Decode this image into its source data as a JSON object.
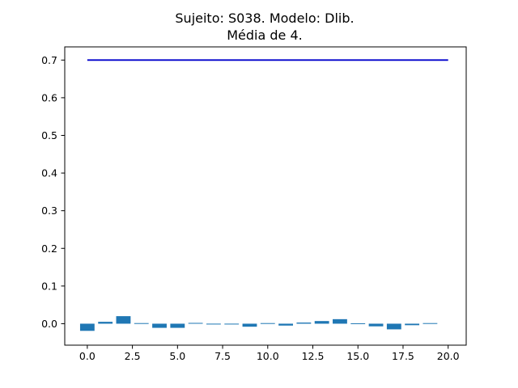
{
  "chart_data": {
    "type": "bar",
    "title": "Sujeito: S038. Modelo: Dlib.",
    "subtitle": "Média de 4.",
    "xlabel": "",
    "ylabel": "",
    "xlim": [
      -1.25,
      21.0
    ],
    "ylim": [
      -0.057,
      0.735
    ],
    "x_ticks": [
      0.0,
      2.5,
      5.0,
      7.5,
      10.0,
      12.5,
      15.0,
      17.5,
      20.0
    ],
    "x_tick_labels": [
      "0.0",
      "2.5",
      "5.0",
      "7.5",
      "10.0",
      "12.5",
      "15.0",
      "17.5",
      "20.0"
    ],
    "y_ticks": [
      0.0,
      0.1,
      0.2,
      0.3,
      0.4,
      0.5,
      0.6,
      0.7
    ],
    "y_tick_labels": [
      "0.0",
      "0.1",
      "0.2",
      "0.3",
      "0.4",
      "0.5",
      "0.6",
      "0.7"
    ],
    "grid": false,
    "bar_color": "#1f77b4",
    "line_color": "#0000cc",
    "bars": {
      "x": [
        0,
        1,
        2,
        3,
        4,
        5,
        6,
        7,
        8,
        9,
        10,
        11,
        12,
        13,
        14,
        15,
        16,
        17,
        18,
        19
      ],
      "values": [
        -0.019,
        0.005,
        0.02,
        0.001,
        -0.011,
        -0.011,
        0.002,
        -0.002,
        -0.002,
        -0.008,
        0.001,
        -0.005,
        0.003,
        0.007,
        0.012,
        0.0,
        -0.007,
        -0.015,
        -0.004,
        0.001
      ],
      "width": 0.8
    },
    "line": {
      "x": [
        0,
        20
      ],
      "y": [
        0.7,
        0.7
      ]
    }
  }
}
